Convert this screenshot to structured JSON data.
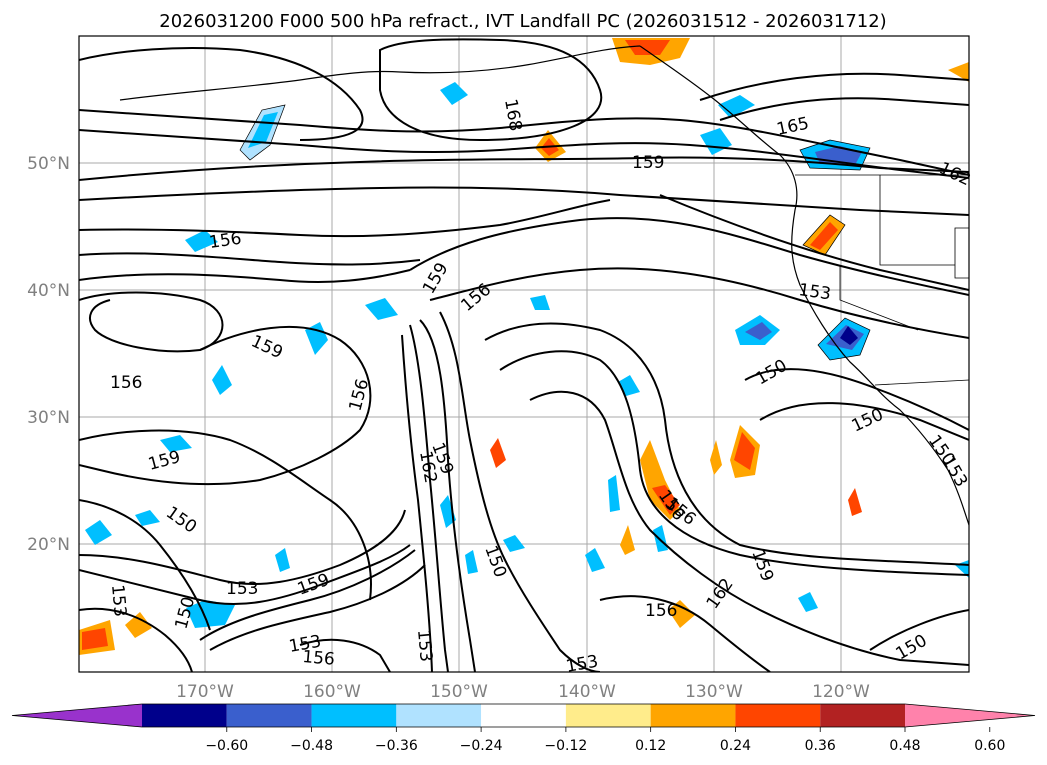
{
  "title": "2026031200 F000 500 hPa refract., IVT Landfall PC (2026031512 - 2026031712)",
  "map": {
    "lat_ticks": [
      "20°N",
      "30°N",
      "40°N",
      "50°N"
    ],
    "lon_ticks": [
      "170°W",
      "160°W",
      "150°W",
      "140°W",
      "130°W",
      "120°W"
    ],
    "contour_labels": [
      "168",
      "165",
      "162",
      "159",
      "159",
      "156",
      "156",
      "159",
      "156",
      "153",
      "159",
      "156",
      "150",
      "150",
      "159",
      "156",
      "150",
      "162",
      "150",
      "153",
      "159",
      "153",
      "156",
      "153",
      "150",
      "153",
      "156",
      "162",
      "159",
      "153",
      "150",
      "156",
      "150",
      "153"
    ]
  },
  "colorbar": {
    "ticks": [
      "−0.60",
      "−0.48",
      "−0.36",
      "−0.24",
      "−0.12",
      "0.12",
      "0.24",
      "0.36",
      "0.48",
      "0.60"
    ],
    "colors": [
      "#9932cc",
      "#00008b",
      "#3a5fcd",
      "#00bfff",
      "#b0e2ff",
      "#ffffff",
      "#ffec8b",
      "#ffa500",
      "#ff4500",
      "#b22222",
      "#ff82ab"
    ]
  }
}
